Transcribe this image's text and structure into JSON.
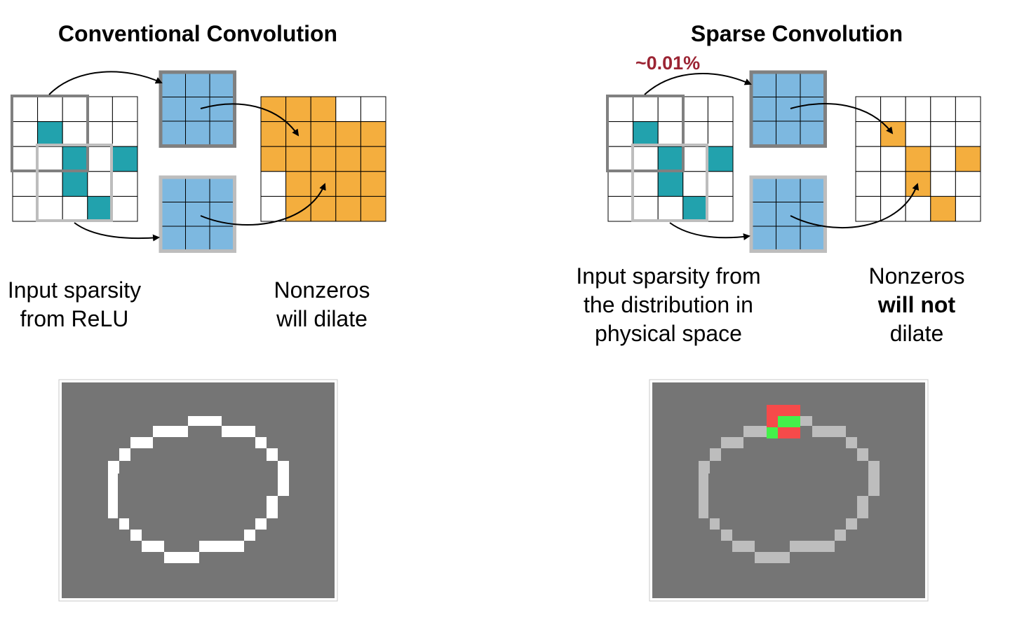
{
  "left": {
    "title": "Conventional Convolution",
    "caption_input": [
      "Input sparsity",
      "from ReLU"
    ],
    "caption_output": [
      "Nonzeros",
      "will dilate"
    ]
  },
  "right": {
    "title": "Sparse Convolution",
    "percent_label": "~0.01%",
    "caption_input": [
      "Input sparsity from",
      "the distribution in",
      "physical space"
    ],
    "caption_output_line1": "Nonzeros",
    "caption_output_bold": "will not",
    "caption_output_line3": "dilate"
  },
  "colors": {
    "input_active": "#22a2ad",
    "kernel": "#7db8e0",
    "output_active": "#f4ae3e",
    "window_dark": "#808080",
    "window_light": "#bdbdbd",
    "canvas_bg": "#757575",
    "contour_conventional": "#ffffff",
    "contour_sparse": "#bdbdbd",
    "highlight_red": "#f64a4a",
    "highlight_green": "#44f04a",
    "percent_text": "#9b2433"
  },
  "grids": {
    "input_active_cells": [
      [
        1,
        1
      ],
      [
        2,
        2
      ],
      [
        2,
        4
      ],
      [
        3,
        2
      ],
      [
        4,
        3
      ]
    ],
    "output_conventional_active": [
      [
        0,
        0
      ],
      [
        0,
        1
      ],
      [
        0,
        2
      ],
      [
        1,
        0
      ],
      [
        1,
        1
      ],
      [
        1,
        2
      ],
      [
        1,
        3
      ],
      [
        1,
        4
      ],
      [
        2,
        0
      ],
      [
        2,
        1
      ],
      [
        2,
        2
      ],
      [
        2,
        3
      ],
      [
        2,
        4
      ],
      [
        3,
        1
      ],
      [
        3,
        2
      ],
      [
        3,
        3
      ],
      [
        3,
        4
      ],
      [
        4,
        1
      ],
      [
        4,
        2
      ],
      [
        4,
        3
      ],
      [
        4,
        4
      ]
    ],
    "output_sparse_active": [
      [
        1,
        1
      ],
      [
        2,
        2
      ],
      [
        2,
        4
      ],
      [
        3,
        2
      ],
      [
        4,
        3
      ]
    ]
  }
}
